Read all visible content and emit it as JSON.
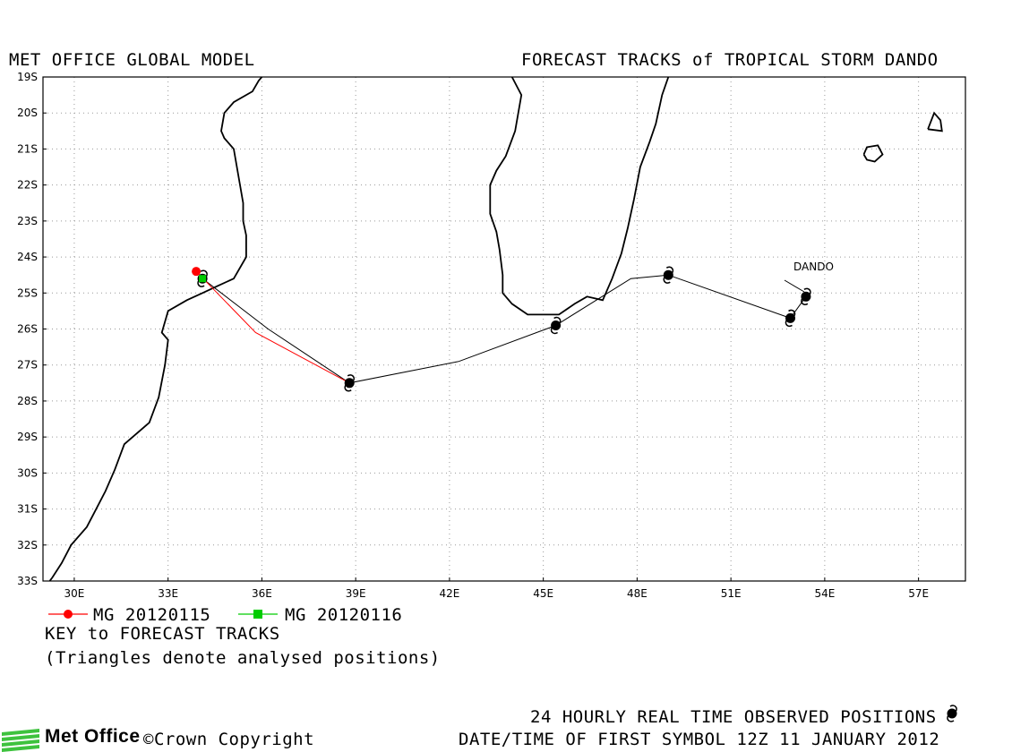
{
  "header": {
    "left_title": "MET OFFICE GLOBAL MODEL",
    "right_title": "FORECAST TRACKS of TROPICAL STORM DANDO"
  },
  "map": {
    "lon_range": [
      29,
      58.5
    ],
    "lat_range": [
      -33,
      -19
    ],
    "lon_ticks": [
      {
        "value": 30,
        "label": "30E"
      },
      {
        "value": 33,
        "label": "33E"
      },
      {
        "value": 36,
        "label": "36E"
      },
      {
        "value": 39,
        "label": "39E"
      },
      {
        "value": 42,
        "label": "42E"
      },
      {
        "value": 45,
        "label": "45E"
      },
      {
        "value": 48,
        "label": "48E"
      },
      {
        "value": 51,
        "label": "51E"
      },
      {
        "value": 54,
        "label": "54E"
      },
      {
        "value": 57,
        "label": "57E"
      }
    ],
    "lat_ticks": [
      {
        "value": -19,
        "label": "19S"
      },
      {
        "value": -20,
        "label": "20S"
      },
      {
        "value": -21,
        "label": "21S"
      },
      {
        "value": -22,
        "label": "22S"
      },
      {
        "value": -23,
        "label": "23S"
      },
      {
        "value": -24,
        "label": "24S"
      },
      {
        "value": -25,
        "label": "25S"
      },
      {
        "value": -26,
        "label": "26S"
      },
      {
        "value": -27,
        "label": "27S"
      },
      {
        "value": -28,
        "label": "28S"
      },
      {
        "value": -29,
        "label": "29S"
      },
      {
        "value": -30,
        "label": "30S"
      },
      {
        "value": -31,
        "label": "31S"
      },
      {
        "value": -32,
        "label": "32S"
      },
      {
        "value": -33,
        "label": "33S"
      }
    ],
    "grid": "dotted",
    "storm_label": "DANDO",
    "observed_track": [
      {
        "lon": 53.4,
        "lat": -25.1
      },
      {
        "lon": 52.9,
        "lat": -25.7
      },
      {
        "lon": 49.0,
        "lat": -24.5
      },
      {
        "lon": 47.8,
        "lat": -24.6
      },
      {
        "lon": 45.4,
        "lat": -25.9
      },
      {
        "lon": 42.3,
        "lat": -26.9
      },
      {
        "lon": 38.8,
        "lat": -27.5
      },
      {
        "lon": 36.2,
        "lat": -26.0
      },
      {
        "lon": 34.1,
        "lat": -24.6
      }
    ],
    "observed_symbols": [
      {
        "lon": 53.4,
        "lat": -25.1
      },
      {
        "lon": 52.9,
        "lat": -25.7
      },
      {
        "lon": 49.0,
        "lat": -24.5
      },
      {
        "lon": 45.4,
        "lat": -25.9
      },
      {
        "lon": 38.8,
        "lat": -27.5
      },
      {
        "lon": 34.1,
        "lat": -24.6
      }
    ],
    "forecast_tracks": [
      {
        "color": "#ff0000",
        "marker": "circle",
        "points": [
          {
            "lon": 38.8,
            "lat": -27.5
          },
          {
            "lon": 35.8,
            "lat": -26.1
          },
          {
            "lon": 33.9,
            "lat": -24.4
          }
        ]
      },
      {
        "color": "#00cc00",
        "marker": "square",
        "points": [
          {
            "lon": 34.1,
            "lat": -24.6
          }
        ]
      }
    ],
    "coastlines": [
      [
        [
          29.0,
          -33.25
        ],
        [
          29.3,
          -32.9
        ],
        [
          29.6,
          -32.5
        ],
        [
          29.9,
          -32.0
        ],
        [
          30.4,
          -31.5
        ],
        [
          30.7,
          -31.0
        ],
        [
          31.0,
          -30.5
        ],
        [
          31.3,
          -29.9
        ],
        [
          31.6,
          -29.2
        ],
        [
          32.4,
          -28.6
        ],
        [
          32.7,
          -27.9
        ],
        [
          32.9,
          -27.0
        ],
        [
          33.0,
          -26.3
        ],
        [
          32.8,
          -26.1
        ],
        [
          33.0,
          -25.5
        ],
        [
          33.6,
          -25.2
        ],
        [
          34.1,
          -25.0
        ],
        [
          34.6,
          -24.8
        ],
        [
          35.1,
          -24.6
        ],
        [
          35.5,
          -24.0
        ],
        [
          35.5,
          -23.4
        ],
        [
          35.4,
          -23.0
        ],
        [
          35.4,
          -22.5
        ],
        [
          35.3,
          -22.0
        ],
        [
          35.1,
          -21.0
        ],
        [
          34.8,
          -20.7
        ],
        [
          34.7,
          -20.5
        ],
        [
          34.8,
          -20.0
        ],
        [
          35.1,
          -19.7
        ],
        [
          35.7,
          -19.4
        ],
        [
          35.9,
          -19.1
        ],
        [
          36.0,
          -19.0
        ]
      ],
      [
        [
          44.0,
          -19.0
        ],
        [
          44.3,
          -19.5
        ],
        [
          44.1,
          -20.5
        ],
        [
          43.8,
          -21.2
        ],
        [
          43.5,
          -21.6
        ],
        [
          43.3,
          -22.0
        ],
        [
          43.3,
          -22.8
        ],
        [
          43.5,
          -23.3
        ],
        [
          43.6,
          -23.8
        ],
        [
          43.7,
          -24.5
        ],
        [
          43.7,
          -25.0
        ],
        [
          44.0,
          -25.3
        ],
        [
          44.5,
          -25.6
        ],
        [
          45.0,
          -25.6
        ],
        [
          45.5,
          -25.6
        ],
        [
          46.0,
          -25.3
        ],
        [
          46.4,
          -25.1
        ],
        [
          46.9,
          -25.2
        ],
        [
          47.2,
          -24.6
        ],
        [
          47.5,
          -23.9
        ],
        [
          47.7,
          -23.2
        ],
        [
          47.9,
          -22.4
        ],
        [
          48.1,
          -21.5
        ],
        [
          48.4,
          -20.8
        ],
        [
          48.6,
          -20.3
        ],
        [
          48.8,
          -19.5
        ],
        [
          49.0,
          -19.0
        ]
      ],
      [
        [
          55.25,
          -21.15
        ],
        [
          55.35,
          -20.95
        ],
        [
          55.7,
          -20.9
        ],
        [
          55.85,
          -21.15
        ],
        [
          55.6,
          -21.35
        ],
        [
          55.35,
          -21.3
        ],
        [
          55.25,
          -21.15
        ]
      ],
      [
        [
          57.3,
          -20.45
        ],
        [
          57.5,
          -20.0
        ],
        [
          57.7,
          -20.2
        ],
        [
          57.75,
          -20.5
        ],
        [
          57.3,
          -20.45
        ]
      ]
    ]
  },
  "legend": {
    "items": [
      {
        "label": "MG 20120115",
        "color": "#ff0000",
        "marker": "circle"
      },
      {
        "label": "MG 20120116",
        "color": "#00cc00",
        "marker": "square"
      }
    ],
    "key_title": "KEY to FORECAST TRACKS",
    "key_note": "(Triangles denote analysed positions)"
  },
  "footer": {
    "logo_text": "Met Office",
    "copyright": "©Crown Copyright",
    "observed_note": "24 HOURLY REAL TIME OBSERVED POSITIONS",
    "datetime_note": "DATE/TIME OF FIRST SYMBOL 12Z 11 JANUARY 2012",
    "symbol_icon": "tropical-storm-symbol"
  },
  "colors": {
    "observed_track": "#000000",
    "forecast_red": "#ff0000",
    "forecast_green": "#00cc00",
    "logo_green": "#3ec23e"
  }
}
